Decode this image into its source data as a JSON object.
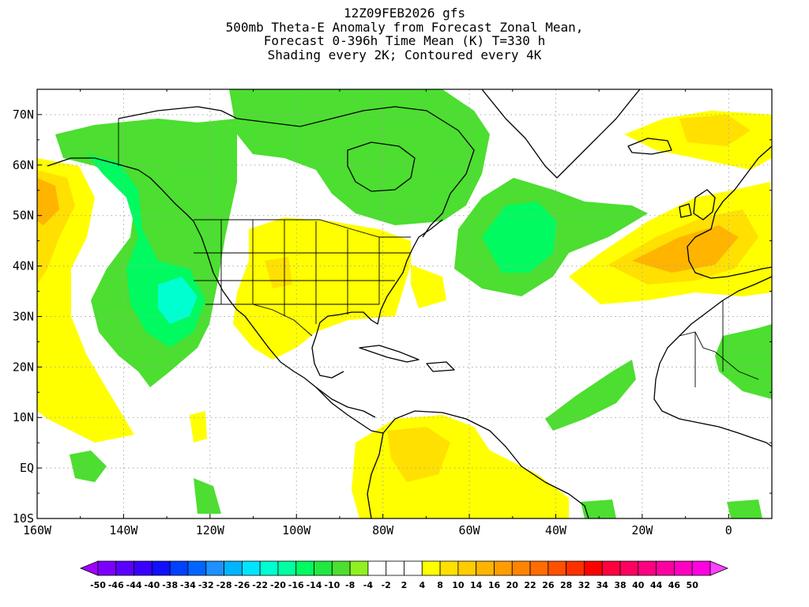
{
  "titles": {
    "line1": "12Z09FEB2026 gfs",
    "line2": "500mb Theta-E Anomaly from Forecast Zonal Mean,",
    "line3": "Forecast 0-396h Time Mean (K) T=330 h",
    "line4": "Shading every 2K; Contoured every 4K"
  },
  "map": {
    "lon_range": [
      -160,
      10
    ],
    "lat_range": [
      -10,
      75
    ],
    "lon_ticks": [
      {
        "value": -160,
        "label": "160W"
      },
      {
        "value": -140,
        "label": "140W"
      },
      {
        "value": -120,
        "label": "120W"
      },
      {
        "value": -100,
        "label": "100W"
      },
      {
        "value": -80,
        "label": "80W"
      },
      {
        "value": -60,
        "label": "60W"
      },
      {
        "value": -40,
        "label": "40W"
      },
      {
        "value": -20,
        "label": "20W"
      },
      {
        "value": 0,
        "label": "0"
      }
    ],
    "lat_ticks": [
      {
        "value": -10,
        "label": "10S"
      },
      {
        "value": 0,
        "label": "EQ"
      },
      {
        "value": 10,
        "label": "10N"
      },
      {
        "value": 20,
        "label": "20N"
      },
      {
        "value": 30,
        "label": "30N"
      },
      {
        "value": 40,
        "label": "40N"
      },
      {
        "value": 50,
        "label": "50N"
      },
      {
        "value": 60,
        "label": "60N"
      },
      {
        "value": 70,
        "label": "70N"
      }
    ],
    "grid": true
  },
  "colorbar": {
    "colors": [
      "#a000ff",
      "#7c00ff",
      "#5a00ff",
      "#3a00ff",
      "#1010ff",
      "#0040ff",
      "#0066ff",
      "#1e90ff",
      "#00b4ff",
      "#00e5ff",
      "#00ffd0",
      "#00ffa0",
      "#00fa60",
      "#20e840",
      "#4cde30",
      "#90f020",
      "#ffffff",
      "#ffffff",
      "#ffffff",
      "#ffff00",
      "#ffe000",
      "#ffcc00",
      "#ffb400",
      "#ff9c00",
      "#ff8400",
      "#ff6c00",
      "#ff5000",
      "#ff3000",
      "#ff0000",
      "#ff0040",
      "#ff0060",
      "#ff0080",
      "#ff00a0",
      "#ff00c0",
      "#ff00e0",
      "#ff40ff"
    ],
    "labels": [
      "-50",
      "-46",
      "-44",
      "-40",
      "-38",
      "-34",
      "-32",
      "-28",
      "-26",
      "-22",
      "-20",
      "-16",
      "-14",
      "-10",
      "-8",
      "-4",
      "-2",
      "2",
      "4",
      "8",
      "10",
      "14",
      "16",
      "20",
      "22",
      "26",
      "28",
      "32",
      "34",
      "38",
      "40",
      "44",
      "46",
      "50"
    ]
  },
  "anomaly_colors": {
    "green": "#4cde30",
    "teal": "#00fa60",
    "cyan": "#00ffd0",
    "yellow": "#ffff00",
    "gold": "#ffe000",
    "orange": "#ffb400"
  }
}
